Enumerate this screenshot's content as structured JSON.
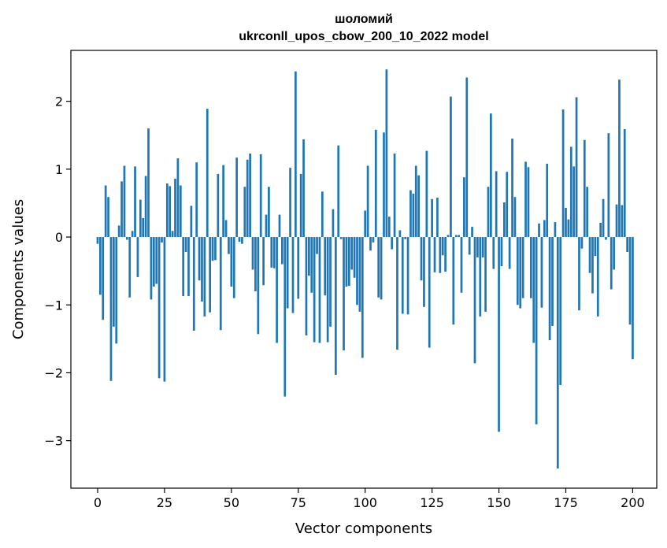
{
  "chart_data": {
    "type": "bar",
    "title_line1": "шоломий",
    "title_line2": "ukrconll_upos_cbow_200_10_2022 model",
    "xlabel": "Vector components",
    "ylabel": "Components values",
    "xlim": [
      -10,
      209
    ],
    "ylim": [
      -3.7,
      2.75
    ],
    "xticks": [
      0,
      25,
      50,
      75,
      100,
      125,
      150,
      175,
      200
    ],
    "yticks": [
      -3,
      -2,
      -1,
      0,
      1,
      2
    ],
    "ytick_labels": [
      "−3",
      "−2",
      "−1",
      "0",
      "1",
      "2"
    ],
    "bar_color": "#1f77b4",
    "grid": false,
    "values": [
      -0.1,
      -0.85,
      -1.22,
      0.76,
      0.59,
      -2.12,
      -1.32,
      -1.57,
      0.17,
      0.82,
      1.05,
      -0.04,
      -0.89,
      0.09,
      1.04,
      -0.59,
      0.55,
      0.28,
      0.9,
      1.6,
      -0.92,
      -0.73,
      -0.69,
      -2.08,
      -0.08,
      -2.13,
      0.79,
      0.75,
      0.09,
      0.86,
      1.16,
      0.76,
      -0.87,
      -0.22,
      -0.87,
      0.46,
      -1.38,
      1.1,
      -0.64,
      -0.95,
      -1.17,
      1.89,
      -1.11,
      -0.35,
      -0.34,
      0.93,
      -1.37,
      1.06,
      0.25,
      -0.25,
      -0.73,
      -0.9,
      1.17,
      -0.07,
      -0.1,
      0.74,
      1.14,
      1.23,
      -0.48,
      -0.8,
      -1.43,
      1.22,
      -0.71,
      0.33,
      0.74,
      -0.45,
      -0.46,
      -1.56,
      0.33,
      -0.4,
      -2.35,
      -1.05,
      1.02,
      -1.12,
      2.44,
      -0.91,
      0.93,
      1.44,
      -1.45,
      -0.57,
      -0.82,
      -1.55,
      -0.25,
      -1.56,
      0.67,
      -0.86,
      -1.55,
      -1.32,
      0.41,
      -2.03,
      1.35,
      -0.03,
      -1.67,
      -0.73,
      -0.72,
      -0.48,
      -0.6,
      -1.0,
      -1.1,
      -1.78,
      0.39,
      1.05,
      -0.2,
      -0.08,
      1.58,
      -0.89,
      -0.92,
      1.54,
      2.47,
      0.3,
      -0.18,
      1.23,
      -1.66,
      0.1,
      -1.13,
      -0.03,
      -1.14,
      0.69,
      0.64,
      1.05,
      0.91,
      -0.64,
      -1.03,
      1.27,
      -1.63,
      0.56,
      -0.52,
      0.58,
      -0.53,
      -0.27,
      -0.51,
      0.03,
      2.07,
      -1.29,
      0.03,
      0.03,
      -0.82,
      0.88,
      2.35,
      -0.26,
      0.15,
      -1.86,
      -0.3,
      -1.17,
      -0.3,
      -1.1,
      0.74,
      1.82,
      -0.47,
      0.97,
      -2.87,
      -0.43,
      0.51,
      0.96,
      -0.47,
      1.45,
      0.59,
      -1.0,
      -1.05,
      -0.9,
      1.11,
      1.03,
      -0.9,
      -1.56,
      -2.76,
      0.2,
      -1.04,
      0.25,
      1.08,
      -1.52,
      -1.31,
      0.22,
      -3.41,
      -2.18,
      1.88,
      0.43,
      0.26,
      1.33,
      1.04,
      2.06,
      -1.08,
      -0.17,
      1.43,
      0.74,
      -0.53,
      -0.83,
      -0.28,
      -1.17,
      0.21,
      0.56,
      -0.04,
      1.53,
      -0.77,
      -0.48,
      0.48,
      2.32,
      0.47,
      1.59,
      -0.22,
      -1.29,
      -1.8
    ]
  }
}
